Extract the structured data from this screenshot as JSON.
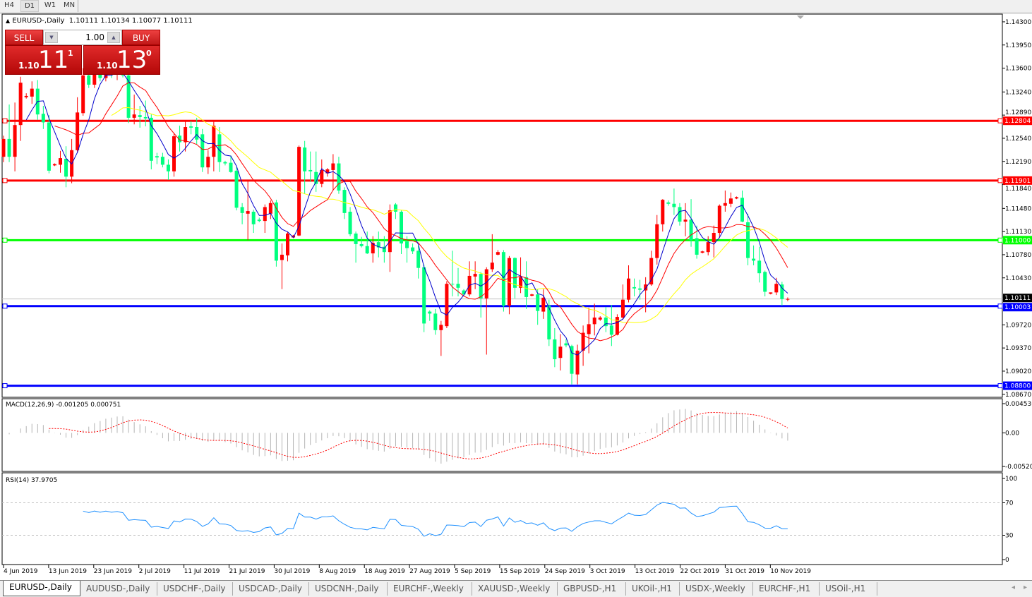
{
  "toolbar": {
    "timeframes": [
      "H4",
      "D1",
      "W1",
      "MN"
    ],
    "active": "D1"
  },
  "header": {
    "arrow": "▲",
    "symbol": "EURUSD-,Daily",
    "ohlc": "1.10111 1.10134 1.10077 1.10111"
  },
  "trade": {
    "sell_label": "SELL",
    "buy_label": "BUY",
    "lot": "1.00",
    "sell_price": {
      "prefix": "1.10",
      "big": "11",
      "sup": "1"
    },
    "buy_price": {
      "prefix": "1.10",
      "big": "13",
      "sup": "0"
    }
  },
  "colors": {
    "bull": "#ff0000",
    "bear": "#00ff7f",
    "ma_fast": "#0000cc",
    "ma_mid": "#ff0000",
    "ma_slow": "#ffff00",
    "rsi": "#1e90ff",
    "macd_hist": "#b4b4b4",
    "macd_signal": "#ff0000"
  },
  "price_axis": [
    "1.14300",
    "1.13950",
    "1.13600",
    "1.13240",
    "1.12890",
    "1.12540",
    "1.12190",
    "1.11840",
    "1.11480",
    "1.11130",
    "1.10780",
    "1.10430",
    "1.09720",
    "1.09370",
    "1.09020",
    "1.08670"
  ],
  "hlines": [
    {
      "price": 1.12804,
      "label": "1.12804",
      "color": "#ff0000"
    },
    {
      "price": 1.11901,
      "label": "1.11901",
      "color": "#ff0000"
    },
    {
      "price": 1.11,
      "label": "1.11000",
      "color": "#00ff00"
    },
    {
      "price": 1.10003,
      "label": "1.10003",
      "color": "#0000ff"
    },
    {
      "price": 1.088,
      "label": "1.08800",
      "color": "#0000ff"
    }
  ],
  "current_price": {
    "price": 1.10111,
    "label": "1.10111"
  },
  "macd": {
    "title": "MACD(12,26,9) -0.001205 0.000751",
    "axis": [
      "0.004536",
      "0.00",
      "-0.005205"
    ],
    "max": 0.004536,
    "min": -0.005205
  },
  "rsi": {
    "title": "RSI(14) 37.9705",
    "axis": [
      "100",
      "70",
      "30",
      "0"
    ],
    "levels": [
      70,
      30
    ]
  },
  "date_axis": [
    "4 Jun 2019",
    "13 Jun 2019",
    "23 Jun 2019",
    "2 Jul 2019",
    "11 Jul 2019",
    "21 Jul 2019",
    "30 Jul 2019",
    "8 Aug 2019",
    "18 Aug 2019",
    "27 Aug 2019",
    "5 Sep 2019",
    "15 Sep 2019",
    "24 Sep 2019",
    "3 Oct 2019",
    "13 Oct 2019",
    "22 Oct 2019",
    "31 Oct 2019",
    "10 Nov 2019"
  ],
  "tabs": [
    "EURUSD-,Daily",
    "AUDUSD-,Daily",
    "USDCHF-,Daily",
    "USDCAD-,Daily",
    "USDCNH-,Daily",
    "EURCHF-,Weekly",
    "XAUUSD-,Weekly",
    "GBPUSD-,H1",
    "UKOil-,H1",
    "USDX-,Weekly",
    "EURCHF-,H1",
    "USOil-,H1"
  ],
  "active_tab": "EURUSD-,Daily",
  "chart_data": {
    "type": "candlestick",
    "symbol": "EURUSD-,Daily",
    "ylim": [
      1.0867,
      1.143
    ],
    "ohlc_fields": [
      "open",
      "high",
      "low",
      "close"
    ],
    "ohlc": [
      [
        1.1226,
        1.1258,
        1.1218,
        1.1253
      ],
      [
        1.1253,
        1.1305,
        1.1218,
        1.1226
      ],
      [
        1.1226,
        1.1308,
        1.1204,
        1.1274
      ],
      [
        1.1274,
        1.1347,
        1.125,
        1.1338
      ],
      [
        1.1316,
        1.1322,
        1.1314,
        1.1318
      ],
      [
        1.1317,
        1.134,
        1.1306,
        1.1329
      ],
      [
        1.1329,
        1.1342,
        1.1282,
        1.129
      ],
      [
        1.1291,
        1.1303,
        1.1268,
        1.1278
      ],
      [
        1.1278,
        1.1289,
        1.1201,
        1.1205
      ],
      [
        1.1213,
        1.1216,
        1.1212,
        1.1215
      ],
      [
        1.1214,
        1.1235,
        1.1202,
        1.1224
      ],
      [
        1.1223,
        1.1242,
        1.118,
        1.1196
      ],
      [
        1.1196,
        1.1253,
        1.1186,
        1.1236
      ],
      [
        1.1236,
        1.1316,
        1.1232,
        1.1293
      ],
      [
        1.1292,
        1.136,
        1.1288,
        1.1349
      ],
      [
        1.1349,
        1.1362,
        1.133,
        1.1335
      ],
      [
        1.1335,
        1.1365,
        1.133,
        1.1356
      ],
      [
        1.1356,
        1.137,
        1.134,
        1.1345
      ],
      [
        1.1345,
        1.1372,
        1.134,
        1.136
      ],
      [
        1.136,
        1.1375,
        1.1345,
        1.135
      ],
      [
        1.135,
        1.1368,
        1.1342,
        1.1358
      ],
      [
        1.1358,
        1.137,
        1.1346,
        1.1349
      ],
      [
        1.1349,
        1.136,
        1.1277,
        1.1285
      ],
      [
        1.1285,
        1.132,
        1.1275,
        1.129
      ],
      [
        1.1289,
        1.1303,
        1.127,
        1.1286
      ],
      [
        1.1286,
        1.1311,
        1.1272,
        1.1284
      ],
      [
        1.1285,
        1.129,
        1.1207,
        1.122
      ],
      [
        1.1227,
        1.1232,
        1.1215,
        1.1225
      ],
      [
        1.1226,
        1.1232,
        1.121,
        1.1214
      ],
      [
        1.1214,
        1.1222,
        1.1191,
        1.1204
      ],
      [
        1.1204,
        1.1262,
        1.1196,
        1.1257
      ],
      [
        1.1258,
        1.1273,
        1.1234,
        1.1248
      ],
      [
        1.1248,
        1.128,
        1.1234,
        1.1271
      ],
      [
        1.1272,
        1.128,
        1.126,
        1.127
      ],
      [
        1.1271,
        1.1285,
        1.1245,
        1.1252
      ],
      [
        1.126,
        1.1268,
        1.1203,
        1.121
      ],
      [
        1.121,
        1.1236,
        1.12,
        1.1226
      ],
      [
        1.1226,
        1.1281,
        1.1204,
        1.1273
      ],
      [
        1.126,
        1.1271,
        1.1203,
        1.1218
      ],
      [
        1.1218,
        1.122,
        1.1213,
        1.1216
      ],
      [
        1.1217,
        1.1228,
        1.1202,
        1.1203
      ],
      [
        1.1205,
        1.121,
        1.1145,
        1.1149
      ],
      [
        1.115,
        1.1156,
        1.1124,
        1.1141
      ],
      [
        1.114,
        1.119,
        1.11,
        1.1144
      ],
      [
        1.1143,
        1.1146,
        1.1111,
        1.1124
      ],
      [
        1.1131,
        1.1134,
        1.1127,
        1.1129
      ],
      [
        1.1129,
        1.1154,
        1.1111,
        1.115
      ],
      [
        1.114,
        1.116,
        1.1132,
        1.1156
      ],
      [
        1.1157,
        1.1161,
        1.106,
        1.1069
      ],
      [
        1.107,
        1.1095,
        1.1026,
        1.1078
      ],
      [
        1.1077,
        1.1113,
        1.1068,
        1.111
      ],
      [
        1.1104,
        1.1108,
        1.1103,
        1.1107
      ],
      [
        1.1107,
        1.1243,
        1.1106,
        1.1241
      ],
      [
        1.124,
        1.125,
        1.117,
        1.1204
      ],
      [
        1.1206,
        1.1234,
        1.1188,
        1.1204
      ],
      [
        1.1203,
        1.1234,
        1.1173,
        1.1185
      ],
      [
        1.1185,
        1.1222,
        1.118,
        1.1206
      ],
      [
        1.1201,
        1.1209,
        1.1196,
        1.1207
      ],
      [
        1.1206,
        1.123,
        1.1175,
        1.1216
      ],
      [
        1.1216,
        1.1226,
        1.117,
        1.1175
      ],
      [
        1.1176,
        1.118,
        1.1132,
        1.1141
      ],
      [
        1.1143,
        1.115,
        1.1106,
        1.1109
      ],
      [
        1.111,
        1.1113,
        1.1066,
        1.1094
      ],
      [
        1.1094,
        1.1105,
        1.1089,
        1.1091
      ],
      [
        1.1091,
        1.1113,
        1.1079,
        1.108
      ],
      [
        1.108,
        1.1106,
        1.1066,
        1.1096
      ],
      [
        1.1097,
        1.1113,
        1.1074,
        1.1089
      ],
      [
        1.109,
        1.1106,
        1.1066,
        1.1082
      ],
      [
        1.1082,
        1.1154,
        1.1052,
        1.1145
      ],
      [
        1.1154,
        1.1156,
        1.1132,
        1.1143
      ],
      [
        1.1143,
        1.1145,
        1.1079,
        1.1095
      ],
      [
        1.1098,
        1.1106,
        1.1066,
        1.1088
      ],
      [
        1.1089,
        1.1095,
        1.1079,
        1.1083
      ],
      [
        1.1084,
        1.1092,
        1.1042,
        1.1058
      ],
      [
        1.1059,
        1.1063,
        1.0961,
        1.0974
      ],
      [
        1.0992,
        1.0994,
        1.0978,
        1.0989
      ],
      [
        1.0989,
        1.0996,
        1.0957,
        1.0964
      ],
      [
        1.0964,
        1.0978,
        1.0925,
        1.0972
      ],
      [
        1.097,
        1.1038,
        1.0967,
        1.1034
      ],
      [
        1.1034,
        1.1084,
        1.1015,
        1.1033
      ],
      [
        1.1034,
        1.1058,
        1.1015,
        1.1028
      ],
      [
        1.1024,
        1.1026,
        1.1016,
        1.1018
      ],
      [
        1.1018,
        1.1068,
        1.1015,
        1.1046
      ],
      [
        1.1045,
        1.1068,
        1.1026,
        1.1049
      ],
      [
        1.1049,
        1.1052,
        1.0983,
        1.1012
      ],
      [
        1.1012,
        1.1059,
        1.0927,
        1.1056
      ],
      [
        1.1056,
        1.1109,
        1.1052,
        1.1066
      ],
      [
        1.1078,
        1.1085,
        1.1077,
        1.1082
      ],
      [
        1.1082,
        1.1085,
        1.0992,
        1.1001
      ],
      [
        1.1001,
        1.1076,
        1.0988,
        1.1073
      ],
      [
        1.1073,
        1.1074,
        1.1012,
        1.1028
      ],
      [
        1.1028,
        1.1074,
        1.102,
        1.1044
      ],
      [
        1.1044,
        1.1068,
        1.0996,
        1.1014
      ],
      [
        1.1016,
        1.1019,
        1.1015,
        1.1018
      ],
      [
        1.1018,
        1.1026,
        1.0972,
        1.0993
      ],
      [
        1.0992,
        1.1026,
        1.0981,
        1.1013
      ],
      [
        1.1001,
        1.101,
        1.094,
        1.095
      ],
      [
        1.095,
        1.0967,
        1.0908,
        1.092
      ],
      [
        1.0922,
        1.0958,
        1.0903,
        1.0939
      ],
      [
        1.0944,
        1.095,
        1.0938,
        1.0941
      ],
      [
        1.094,
        1.0942,
        1.0882,
        1.0898
      ],
      [
        1.0897,
        1.0942,
        1.0882,
        1.0933
      ],
      [
        1.0933,
        1.0971,
        1.091,
        1.096
      ],
      [
        1.0958,
        1.0998,
        1.0929,
        1.0973
      ],
      [
        1.0973,
        1.1004,
        1.0956,
        1.0983
      ],
      [
        1.098,
        1.0985,
        1.0978,
        1.0983
      ],
      [
        1.0983,
        1.0999,
        1.0961,
        1.097
      ],
      [
        1.0971,
        1.1002,
        1.094,
        1.0957
      ],
      [
        1.0957,
        1.0988,
        1.0956,
        1.0984
      ],
      [
        1.0983,
        1.1033,
        1.098,
        1.101
      ],
      [
        1.101,
        1.1062,
        1.1006,
        1.1042
      ],
      [
        1.1029,
        1.1042,
        1.1015,
        1.1027
      ],
      [
        1.1027,
        1.104,
        1.101,
        1.1025
      ],
      [
        1.1024,
        1.1044,
        1.0991,
        1.1033
      ],
      [
        1.1033,
        1.1084,
        1.1031,
        1.1073
      ],
      [
        1.1073,
        1.1138,
        1.1063,
        1.1124
      ],
      [
        1.1124,
        1.1162,
        1.1113,
        1.1161
      ],
      [
        1.1157,
        1.116,
        1.1152,
        1.1155
      ],
      [
        1.1155,
        1.1178,
        1.1138,
        1.115
      ],
      [
        1.115,
        1.1156,
        1.1122,
        1.1128
      ],
      [
        1.1128,
        1.1156,
        1.1106,
        1.1131
      ],
      [
        1.1131,
        1.1162,
        1.109,
        1.11
      ],
      [
        1.1103,
        1.1122,
        1.1072,
        1.1078
      ],
      [
        1.1081,
        1.1084,
        1.108,
        1.1083
      ],
      [
        1.1082,
        1.1106,
        1.1077,
        1.1097
      ],
      [
        1.1097,
        1.1122,
        1.1074,
        1.1111
      ],
      [
        1.1111,
        1.1154,
        1.1103,
        1.1152
      ],
      [
        1.1152,
        1.1175,
        1.1143,
        1.1156
      ],
      [
        1.1155,
        1.1172,
        1.115,
        1.1163
      ],
      [
        1.1163,
        1.1166,
        1.1162,
        1.1165
      ],
      [
        1.1164,
        1.1175,
        1.1127,
        1.1128
      ],
      [
        1.1127,
        1.114,
        1.1062,
        1.1073
      ],
      [
        1.1072,
        1.1092,
        1.1062,
        1.1069
      ],
      [
        1.1069,
        1.109,
        1.1036,
        1.105
      ],
      [
        1.1052,
        1.1054,
        1.1015,
        1.1022
      ],
      [
        1.1019,
        1.1021,
        1.1018,
        1.1021
      ],
      [
        1.1021,
        1.1043,
        1.1017,
        1.1034
      ],
      [
        1.1033,
        1.1037,
        1.1001,
        1.1011
      ],
      [
        1.10111,
        1.10134,
        1.10077,
        1.10111
      ]
    ]
  }
}
